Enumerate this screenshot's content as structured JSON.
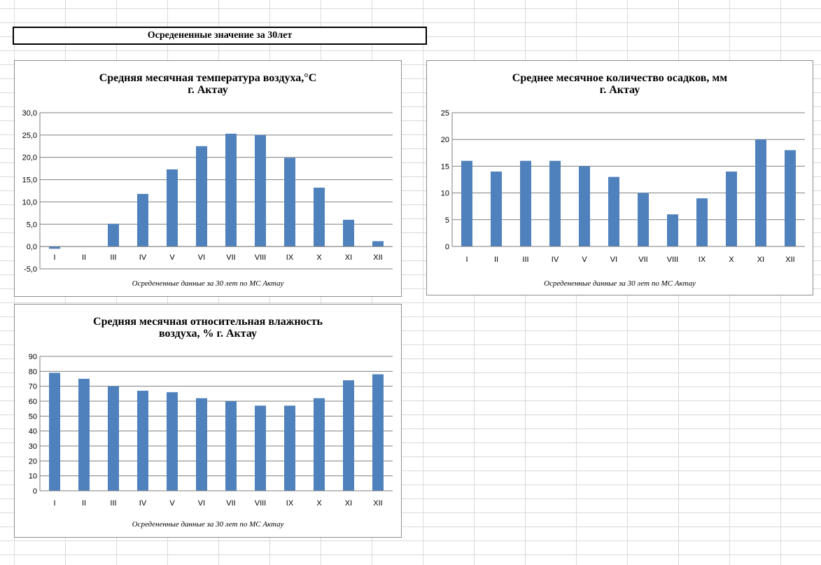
{
  "sheet": {
    "title": "Осредененные  значение за 30лет"
  },
  "charts": {
    "temperature": {
      "title": "Средняя месячная температура воздуха,°С\nг. Актау",
      "note": "Осредененные  данные за 30 лет по МС Актау"
    },
    "precipitation": {
      "title": "Среднее месячное количество осадков, мм\nг. Актау",
      "note": "Осредененные  данные за 30 лет по МС Актау"
    },
    "humidity": {
      "title": "Средняя месячная относительная влажность\nвоздуха, % г. Актау",
      "note": "Осредененные  данные за 30 лет по МС Актау"
    }
  },
  "bar_color": "#4f81bd",
  "chart_data": [
    {
      "type": "bar",
      "title": "Средняя месячная температура воздуха,°С г. Актау",
      "categories": [
        "I",
        "II",
        "III",
        "IV",
        "V",
        "VI",
        "VII",
        "VIII",
        "IX",
        "X",
        "XI",
        "XII"
      ],
      "values": [
        -0.5,
        0.0,
        5.1,
        11.8,
        17.3,
        22.5,
        25.3,
        25.0,
        19.9,
        13.2,
        6.0,
        1.2
      ],
      "ylim": [
        -5,
        30
      ],
      "yticks": [
        "30,0",
        "25,0",
        "20,0",
        "15,0",
        "10,0",
        "5,0",
        "0,0",
        "-5,0"
      ],
      "grid": true,
      "legend": "none"
    },
    {
      "type": "bar",
      "title": "Среднее месячное количество осадков, мм г. Актау",
      "categories": [
        "I",
        "II",
        "III",
        "IV",
        "V",
        "VI",
        "VII",
        "VIII",
        "IX",
        "X",
        "XI",
        "XII"
      ],
      "values": [
        16,
        14,
        16,
        16,
        15,
        13,
        10,
        6,
        9,
        14,
        20,
        18
      ],
      "ylim": [
        0,
        25
      ],
      "yticks": [
        "25",
        "20",
        "15",
        "10",
        "5",
        "0"
      ],
      "grid": true,
      "legend": "none"
    },
    {
      "type": "bar",
      "title": "Средняя месячная относительная влажность воздуха, % г. Актау",
      "categories": [
        "I",
        "II",
        "III",
        "IV",
        "V",
        "VI",
        "VII",
        "VIII",
        "IX",
        "X",
        "XI",
        "XII"
      ],
      "values": [
        79,
        75,
        70,
        67,
        66,
        62,
        60,
        57,
        57,
        62,
        74,
        78
      ],
      "ylim": [
        0,
        90
      ],
      "yticks": [
        "90",
        "80",
        "70",
        "60",
        "50",
        "40",
        "30",
        "20",
        "10",
        "0"
      ],
      "grid": true,
      "legend": "none"
    }
  ]
}
